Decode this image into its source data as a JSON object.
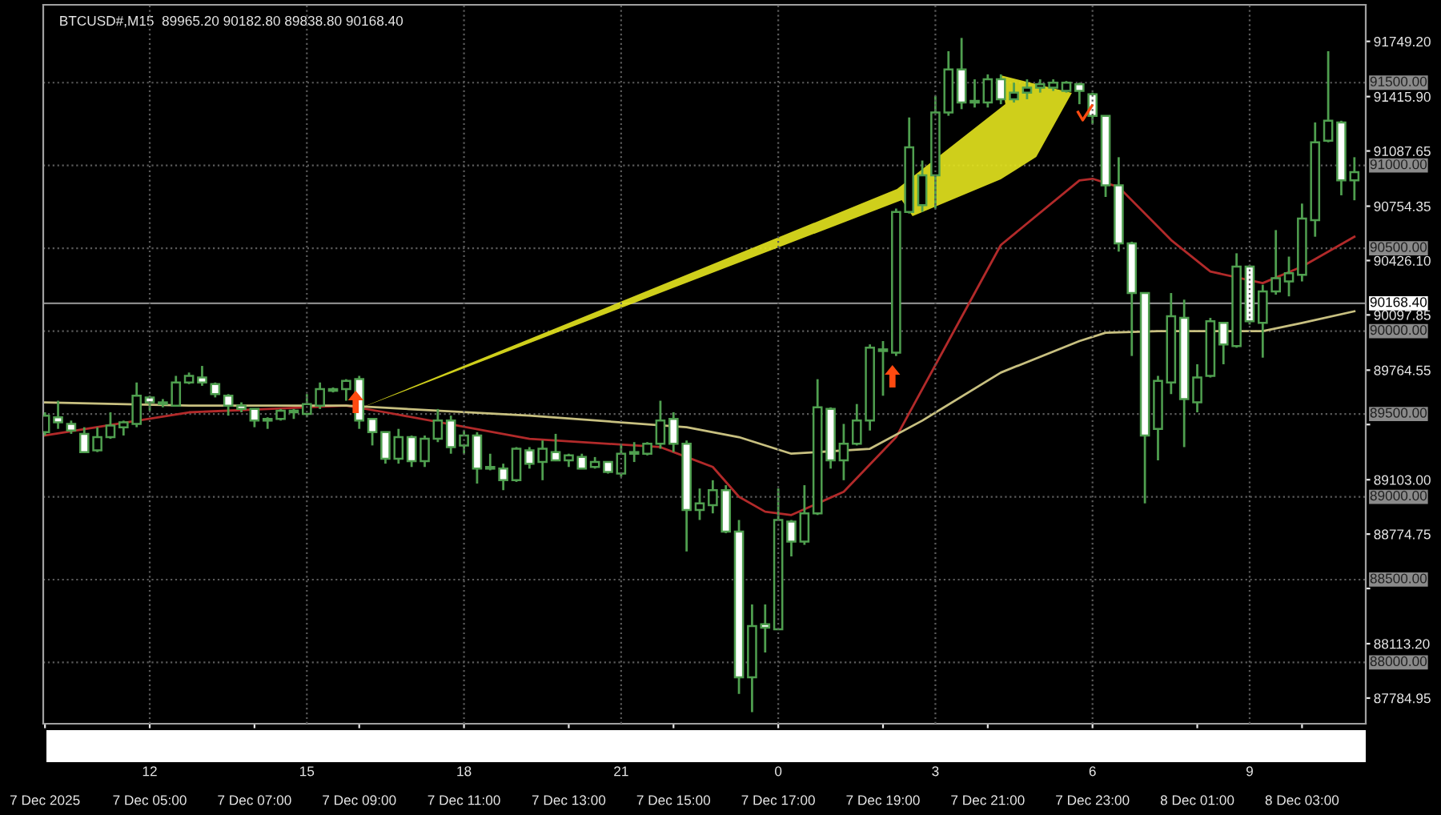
{
  "chart_data": {
    "type": "candlestick",
    "title": "BTCUSD#,M15  89965.20 90182.80 89838.80 90168.40",
    "color": "#4f9f4f",
    "x": [
      "2025-12-07T03:00",
      "2025-12-07T03:15",
      "2025-12-07T03:30",
      "2025-12-07T03:45",
      "2025-12-07T04:00",
      "2025-12-07T04:15",
      "2025-12-07T04:30",
      "2025-12-07T04:45",
      "2025-12-07T05:00",
      "2025-12-07T05:15",
      "2025-12-07T05:30",
      "2025-12-07T05:45",
      "2025-12-07T06:00",
      "2025-12-07T06:15",
      "2025-12-07T06:30",
      "2025-12-07T06:45",
      "2025-12-07T07:00",
      "2025-12-07T07:15",
      "2025-12-07T07:30",
      "2025-12-07T07:45",
      "2025-12-07T08:00",
      "2025-12-07T08:15",
      "2025-12-07T08:30",
      "2025-12-07T08:45",
      "2025-12-07T09:00",
      "2025-12-07T09:15",
      "2025-12-07T09:30",
      "2025-12-07T09:45",
      "2025-12-07T10:00",
      "2025-12-07T10:15",
      "2025-12-07T10:30",
      "2025-12-07T10:45",
      "2025-12-07T11:00",
      "2025-12-07T11:15",
      "2025-12-07T11:30",
      "2025-12-07T11:45",
      "2025-12-07T12:00",
      "2025-12-07T12:15",
      "2025-12-07T12:30",
      "2025-12-07T12:45",
      "2025-12-07T13:00",
      "2025-12-07T13:15",
      "2025-12-07T13:30",
      "2025-12-07T13:45",
      "2025-12-07T14:00",
      "2025-12-07T14:15",
      "2025-12-07T14:30",
      "2025-12-07T14:45",
      "2025-12-07T15:00",
      "2025-12-07T15:15",
      "2025-12-07T15:30",
      "2025-12-07T15:45",
      "2025-12-07T16:00",
      "2025-12-07T16:15",
      "2025-12-07T16:30",
      "2025-12-07T16:45",
      "2025-12-07T17:00",
      "2025-12-07T17:15",
      "2025-12-07T17:30",
      "2025-12-07T17:45",
      "2025-12-07T18:00",
      "2025-12-07T18:15",
      "2025-12-07T18:30",
      "2025-12-07T18:45",
      "2025-12-07T19:00",
      "2025-12-07T19:15",
      "2025-12-07T19:30",
      "2025-12-07T19:45",
      "2025-12-07T20:00",
      "2025-12-07T20:15",
      "2025-12-07T20:30",
      "2025-12-07T20:45",
      "2025-12-07T21:00",
      "2025-12-07T21:15",
      "2025-12-07T21:30",
      "2025-12-07T21:45",
      "2025-12-07T22:00",
      "2025-12-07T22:15",
      "2025-12-07T22:30",
      "2025-12-07T22:45",
      "2025-12-07T23:00",
      "2025-12-07T23:15",
      "2025-12-07T23:30",
      "2025-12-07T23:45",
      "2025-12-08T00:00",
      "2025-12-08T00:15",
      "2025-12-08T00:30",
      "2025-12-08T00:45",
      "2025-12-08T01:00",
      "2025-12-08T01:15",
      "2025-12-08T01:30",
      "2025-12-08T01:45",
      "2025-12-08T02:00",
      "2025-12-08T02:15",
      "2025-12-08T02:30",
      "2025-12-08T02:45",
      "2025-12-08T03:00",
      "2025-12-08T03:15",
      "2025-12-08T03:30",
      "2025-12-08T03:45",
      "2025-12-08T04:00"
    ],
    "ohlc": [
      [
        89390,
        89510,
        89370,
        89490
      ],
      [
        89480,
        89580,
        89410,
        89450
      ],
      [
        89440,
        89460,
        89380,
        89400
      ],
      [
        89380,
        89420,
        89270,
        89270
      ],
      [
        89280,
        89420,
        89270,
        89360
      ],
      [
        89360,
        89510,
        89350,
        89430
      ],
      [
        89420,
        89460,
        89370,
        89450
      ],
      [
        89440,
        89690,
        89420,
        89610
      ],
      [
        89600,
        89610,
        89520,
        89570
      ],
      [
        89560,
        89590,
        89540,
        89570
      ],
      [
        89550,
        89730,
        89550,
        89690
      ],
      [
        89690,
        89750,
        89680,
        89730
      ],
      [
        89720,
        89790,
        89670,
        89690
      ],
      [
        89680,
        89690,
        89600,
        89620
      ],
      [
        89610,
        89620,
        89490,
        89550
      ],
      [
        89550,
        89570,
        89510,
        89530
      ],
      [
        89530,
        89530,
        89420,
        89460
      ],
      [
        89460,
        89480,
        89410,
        89470
      ],
      [
        89470,
        89530,
        89460,
        89520
      ],
      [
        89510,
        89530,
        89470,
        89520
      ],
      [
        89500,
        89620,
        89480,
        89560
      ],
      [
        89550,
        89690,
        89530,
        89650
      ],
      [
        89640,
        89660,
        89630,
        89650
      ],
      [
        89650,
        89710,
        89580,
        89700
      ],
      [
        89710,
        89730,
        89410,
        89460
      ],
      [
        89470,
        89470,
        89310,
        89390
      ],
      [
        89390,
        89390,
        89200,
        89230
      ],
      [
        89230,
        89410,
        89200,
        89360
      ],
      [
        89360,
        89370,
        89180,
        89215
      ],
      [
        89215,
        89370,
        89180,
        89350
      ],
      [
        89350,
        89530,
        89330,
        89460
      ],
      [
        89460,
        89490,
        89260,
        89300
      ],
      [
        89310,
        89400,
        89260,
        89370
      ],
      [
        89370,
        89390,
        89080,
        89170
      ],
      [
        89170,
        89260,
        89160,
        89180
      ],
      [
        89170,
        89200,
        89040,
        89100
      ],
      [
        89100,
        89300,
        89090,
        89290
      ],
      [
        89280,
        89300,
        89170,
        89200
      ],
      [
        89210,
        89340,
        89100,
        89290
      ],
      [
        89270,
        89380,
        89215,
        89220
      ],
      [
        89220,
        89260,
        89180,
        89250
      ],
      [
        89240,
        89260,
        89170,
        89170
      ],
      [
        89180,
        89240,
        89170,
        89210
      ],
      [
        89210,
        89215,
        89140,
        89150
      ],
      [
        89140,
        89320,
        89120,
        89260
      ],
      [
        89260,
        89330,
        89210,
        89270
      ],
      [
        89260,
        89330,
        89250,
        89320
      ],
      [
        89320,
        89580,
        89290,
        89460
      ],
      [
        89470,
        89510,
        89270,
        89320
      ],
      [
        89320,
        89340,
        88670,
        88920
      ],
      [
        88920,
        89050,
        88860,
        88960
      ],
      [
        88950,
        89100,
        88900,
        89040
      ],
      [
        89040,
        89070,
        88780,
        88790
      ],
      [
        88790,
        88860,
        87810,
        87910
      ],
      [
        87910,
        88350,
        87700,
        88220
      ],
      [
        88230,
        88350,
        88060,
        88210
      ],
      [
        88200,
        89050,
        88200,
        88860
      ],
      [
        88850,
        88860,
        88640,
        88730
      ],
      [
        88730,
        89070,
        88710,
        88900
      ],
      [
        88900,
        89710,
        88890,
        89540
      ],
      [
        89530,
        89540,
        89170,
        89220
      ],
      [
        89220,
        89440,
        89100,
        89320
      ],
      [
        89320,
        89560,
        89310,
        89460
      ],
      [
        89460,
        89920,
        89400,
        89900
      ],
      [
        89880,
        89940,
        89610,
        89890
      ],
      [
        89870,
        90740,
        89850,
        90720
      ],
      [
        90720,
        91290,
        90710,
        91110
      ],
      [
        90760,
        91030,
        90720,
        90940
      ],
      [
        90940,
        91420,
        90740,
        91320
      ],
      [
        91320,
        91690,
        91300,
        91580
      ],
      [
        91580,
        91770,
        91340,
        91380
      ],
      [
        91380,
        91520,
        91350,
        91390
      ],
      [
        91380,
        91550,
        91350,
        91520
      ],
      [
        91520,
        91550,
        91370,
        91400
      ],
      [
        91400,
        91500,
        91380,
        91440
      ],
      [
        91440,
        91520,
        91400,
        91470
      ],
      [
        91470,
        91520,
        91440,
        91490
      ],
      [
        91470,
        91520,
        91450,
        91500
      ],
      [
        91450,
        91510,
        91440,
        91500
      ],
      [
        91490,
        91500,
        91370,
        91450
      ],
      [
        91430,
        91440,
        91250,
        91300
      ],
      [
        91300,
        91300,
        90810,
        90880
      ],
      [
        90880,
        91050,
        90480,
        90530
      ],
      [
        90530,
        90540,
        89850,
        90230
      ],
      [
        90230,
        90230,
        88960,
        89370
      ],
      [
        89410,
        89730,
        89220,
        89700
      ],
      [
        89690,
        90230,
        89620,
        90090
      ],
      [
        90080,
        90190,
        89300,
        89590
      ],
      [
        89570,
        89800,
        89510,
        89720
      ],
      [
        89730,
        90080,
        89720,
        90060
      ],
      [
        90050,
        90050,
        89800,
        89920
      ],
      [
        89910,
        90470,
        89900,
        90390
      ],
      [
        90390,
        90400,
        90040,
        90060
      ],
      [
        90050,
        90280,
        89840,
        90240
      ],
      [
        90240,
        90610,
        90220,
        90320
      ],
      [
        90300,
        90450,
        90210,
        90350
      ],
      [
        90340,
        90770,
        90300,
        90680
      ],
      [
        90670,
        91260,
        90570,
        91140
      ],
      [
        91150,
        91690,
        91140,
        91270
      ],
      [
        91260,
        91270,
        90820,
        90910
      ],
      [
        90910,
        91050,
        90790,
        90960
      ]
    ],
    "series": [
      {
        "type": "line",
        "color": "#b22a2a",
        "x": [
          "2025-12-07T03:00",
          "2025-12-07T05:45",
          "2025-12-07T08:45",
          "2025-12-07T09:30",
          "2025-12-07T12:15",
          "2025-12-07T14:45",
          "2025-12-07T15:15",
          "2025-12-07T15:45",
          "2025-12-07T16:15",
          "2025-12-07T16:45",
          "2025-12-07T17:15",
          "2025-12-07T18:15",
          "2025-12-07T19:15",
          "2025-12-07T20:15",
          "2025-12-07T21:15",
          "2025-12-07T22:45",
          "2025-12-07T23:00",
          "2025-12-07T23:30",
          "2025-12-08T00:30",
          "2025-12-08T01:15",
          "2025-12-08T02:15",
          "2025-12-08T03:00",
          "2025-12-08T04:00"
        ],
        "values": [
          89370,
          89510,
          89550,
          89510,
          89350,
          89300,
          89240,
          89180,
          89000,
          88910,
          88890,
          89030,
          89360,
          89940,
          90520,
          90910,
          90920,
          90870,
          90550,
          90360,
          90290,
          90390,
          90570
        ]
      },
      {
        "type": "line",
        "color": "#c8c080",
        "x": [
          "2025-12-07T03:00",
          "2025-12-07T05:45",
          "2025-12-07T08:45",
          "2025-12-07T12:15",
          "2025-12-07T15:15",
          "2025-12-07T16:15",
          "2025-12-07T17:15",
          "2025-12-07T18:45",
          "2025-12-07T19:45",
          "2025-12-07T21:15",
          "2025-12-07T22:45",
          "2025-12-07T23:15",
          "2025-12-08T00:15",
          "2025-12-08T02:15",
          "2025-12-08T03:00",
          "2025-12-08T04:00"
        ],
        "values": [
          89570,
          89550,
          89550,
          89490,
          89420,
          89360,
          89260,
          89290,
          89460,
          89750,
          89940,
          89990,
          90000,
          90000,
          90050,
          90120
        ]
      }
    ],
    "xlim": [
      "2025-12-07T02:58",
      "2025-12-08T04:13"
    ],
    "xticks": [
      {
        "value": "2025-12-07T03:00",
        "label": "7 Dec 2025"
      },
      {
        "value": "2025-12-07T05:00",
        "label": "7 Dec 05:00"
      },
      {
        "value": "2025-12-07T07:00",
        "label": "7 Dec 07:00"
      },
      {
        "value": "2025-12-07T09:00",
        "label": "7 Dec 09:00"
      },
      {
        "value": "2025-12-07T11:00",
        "label": "7 Dec 11:00"
      },
      {
        "value": "2025-12-07T13:00",
        "label": "7 Dec 13:00"
      },
      {
        "value": "2025-12-07T15:00",
        "label": "7 Dec 15:00"
      },
      {
        "value": "2025-12-07T17:00",
        "label": "7 Dec 17:00"
      },
      {
        "value": "2025-12-07T19:00",
        "label": "7 Dec 19:00"
      },
      {
        "value": "2025-12-07T21:00",
        "label": "7 Dec 21:00"
      },
      {
        "value": "2025-12-07T23:00",
        "label": "7 Dec 23:00"
      },
      {
        "value": "2025-12-08T01:00",
        "label": "8 Dec 01:00"
      },
      {
        "value": "2025-12-08T03:00",
        "label": "8 Dec 03:00"
      }
    ],
    "x2lim": [
      "2025-12-07T09:58",
      "2025-12-08T11:13"
    ],
    "x2ticks": [
      {
        "value": "2025-12-07T12:00",
        "label": "12"
      },
      {
        "value": "2025-12-07T15:00",
        "label": "15"
      },
      {
        "value": "2025-12-07T18:00",
        "label": "18"
      },
      {
        "value": "2025-12-07T21:00",
        "label": "21"
      },
      {
        "value": "2025-12-08T00:00",
        "label": "0"
      },
      {
        "value": "2025-12-08T03:00",
        "label": "3"
      },
      {
        "value": "2025-12-08T06:00",
        "label": "6"
      },
      {
        "value": "2025-12-08T09:00",
        "label": "9"
      }
    ],
    "ylim": [
      87630,
      91970
    ],
    "yticks": [
      {
        "value": 91749.2,
        "label": "91749.20"
      },
      {
        "value": 91415.9,
        "label": "91415.90"
      },
      {
        "value": 91087.65,
        "label": "91087.65"
      },
      {
        "value": 90754.35,
        "label": "90754.35"
      },
      {
        "value": 90426.1,
        "label": "90426.10"
      },
      {
        "value": 90097.85,
        "label": "90097.85"
      },
      {
        "value": 89764.55,
        "label": "89764.55"
      },
      {
        "value": 89436.3,
        "label": null
      },
      {
        "value": 89103,
        "label": "89103.00"
      },
      {
        "value": 88774.75,
        "label": "88774.75"
      },
      {
        "value": 88446.5,
        "label": null
      },
      {
        "value": 88113.2,
        "label": "88113.20"
      },
      {
        "value": 87784.95,
        "label": "87784.95"
      }
    ],
    "ref_lines": [
      {
        "axis": "y",
        "value": 91500,
        "label": "91500.00",
        "color": "#5a5a5a",
        "line_style": "dotted"
      },
      {
        "axis": "y",
        "value": 91000,
        "label": "91000.00",
        "color": "#5a5a5a",
        "line_style": "dotted"
      },
      {
        "axis": "y",
        "value": 90500,
        "label": "90500.00",
        "color": "#5a5a5a",
        "line_style": "dotted"
      },
      {
        "axis": "y",
        "value": 90000,
        "label": "90000.00",
        "color": "#5a5a5a",
        "line_style": "dotted"
      },
      {
        "axis": "y",
        "value": 89500,
        "label": "89500.00",
        "color": "#5a5a5a",
        "line_style": "dotted"
      },
      {
        "axis": "y",
        "value": 89000,
        "label": "89000.00",
        "color": "#5a5a5a",
        "line_style": "dotted"
      },
      {
        "axis": "y",
        "value": 88500,
        "label": "88500.00",
        "color": "#5a5a5a",
        "line_style": "dotted"
      },
      {
        "axis": "y",
        "value": 88000,
        "label": "88000.00",
        "color": "#5a5a5a",
        "line_style": "dotted"
      },
      {
        "axis": "y",
        "value": 90168.4,
        "label": "90168.40",
        "color": "#8a8a8a",
        "line_style": "solid"
      }
    ],
    "grid": "x"
  }
}
